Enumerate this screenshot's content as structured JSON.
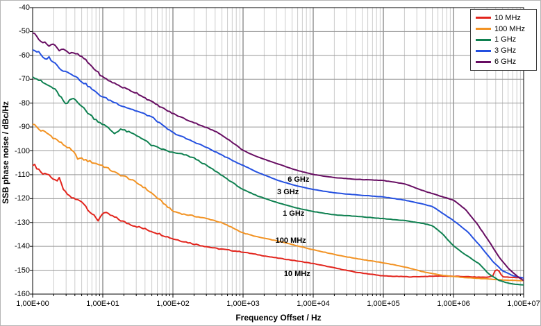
{
  "chart_data": {
    "type": "line",
    "title": "",
    "xlabel": "Frequency Offset / Hz",
    "ylabel": "SSB phase noise / dBc/Hz",
    "x_scale": "log10",
    "x_range_log10": [
      0,
      7
    ],
    "ylim": [
      -160,
      -40
    ],
    "y_tick_step": 10,
    "grid": "major-and-log-minor",
    "x_ticklabels": [
      "1,00E+00",
      "1,00E+01",
      "1,00E+02",
      "1,00E+03",
      "1,00E+04",
      "1,00E+05",
      "1,00E+06",
      "1,00E+07"
    ],
    "y_ticklabels": [
      "-40",
      "-50",
      "-60",
      "-70",
      "-80",
      "-90",
      "-100",
      "-110",
      "-120",
      "-130",
      "-140",
      "-150",
      "-160"
    ],
    "legend": {
      "position": "top-right"
    },
    "series": [
      {
        "name": "10 MHz",
        "color": "#e2241c",
        "noise_db": 0.7,
        "points_log10f_db": [
          [
            0,
            -105.5
          ],
          [
            0.08,
            -107.5
          ],
          [
            0.15,
            -109.8
          ],
          [
            0.22,
            -109.2
          ],
          [
            0.3,
            -112.8
          ],
          [
            0.38,
            -111.8
          ],
          [
            0.45,
            -117
          ],
          [
            0.52,
            -118.8
          ],
          [
            0.6,
            -120.3
          ],
          [
            0.7,
            -121
          ],
          [
            0.8,
            -124.8
          ],
          [
            0.88,
            -127.5
          ],
          [
            0.93,
            -129.3
          ],
          [
            1.0,
            -125.8
          ],
          [
            1.1,
            -126.8
          ],
          [
            1.3,
            -129.8
          ],
          [
            1.5,
            -131.8
          ],
          [
            1.75,
            -134.2
          ],
          [
            2.0,
            -136.8
          ],
          [
            2.3,
            -139
          ],
          [
            2.6,
            -140.8
          ],
          [
            3.0,
            -142.4
          ],
          [
            3.4,
            -144.5
          ],
          [
            3.7,
            -145.8
          ],
          [
            4.0,
            -147.2
          ],
          [
            4.3,
            -149
          ],
          [
            4.6,
            -150.8
          ],
          [
            5.0,
            -152.4
          ],
          [
            5.4,
            -152.8
          ],
          [
            5.8,
            -152.4
          ],
          [
            6.1,
            -152.6
          ],
          [
            6.35,
            -152.9
          ],
          [
            6.5,
            -152.9
          ],
          [
            6.57,
            -152.2
          ],
          [
            6.6,
            -149.4
          ],
          [
            6.65,
            -150.5
          ],
          [
            6.7,
            -152.8
          ],
          [
            6.85,
            -153
          ],
          [
            7.0,
            -153.2
          ]
        ]
      },
      {
        "name": "100 MHz",
        "color": "#f29222",
        "noise_db": 0.6,
        "points_log10f_db": [
          [
            0,
            -88.5
          ],
          [
            0.1,
            -91.2
          ],
          [
            0.2,
            -92.5
          ],
          [
            0.3,
            -94.5
          ],
          [
            0.42,
            -97
          ],
          [
            0.5,
            -98.5
          ],
          [
            0.58,
            -100.5
          ],
          [
            0.64,
            -103
          ],
          [
            0.72,
            -103.5
          ],
          [
            0.85,
            -104.8
          ],
          [
            1.0,
            -106.2
          ],
          [
            1.2,
            -109.5
          ],
          [
            1.35,
            -111.2
          ],
          [
            1.55,
            -114.5
          ],
          [
            1.7,
            -117.8
          ],
          [
            1.85,
            -121.5
          ],
          [
            2.0,
            -125.3
          ],
          [
            2.15,
            -126.5
          ],
          [
            2.35,
            -127.6
          ],
          [
            2.55,
            -128.8
          ],
          [
            2.7,
            -130.2
          ],
          [
            2.85,
            -132.2
          ],
          [
            3.0,
            -134.4
          ],
          [
            3.2,
            -136
          ],
          [
            3.5,
            -137.8
          ],
          [
            3.75,
            -139.6
          ],
          [
            4.0,
            -141.4
          ],
          [
            4.4,
            -144
          ],
          [
            4.76,
            -145.8
          ],
          [
            5.0,
            -146.9
          ],
          [
            5.3,
            -148.6
          ],
          [
            5.6,
            -150.9
          ],
          [
            5.85,
            -152.2
          ],
          [
            6.1,
            -152.9
          ],
          [
            6.4,
            -153.5
          ],
          [
            6.7,
            -154.1
          ],
          [
            7.0,
            -154.4
          ]
        ]
      },
      {
        "name": "1 GHz",
        "color": "#0e8050",
        "noise_db": 0.6,
        "points_log10f_db": [
          [
            0,
            -68.5
          ],
          [
            0.12,
            -71
          ],
          [
            0.2,
            -72.3
          ],
          [
            0.3,
            -73.8
          ],
          [
            0.4,
            -77.3
          ],
          [
            0.47,
            -80.8
          ],
          [
            0.57,
            -77.8
          ],
          [
            0.65,
            -79.5
          ],
          [
            0.75,
            -83
          ],
          [
            0.88,
            -86.5
          ],
          [
            1.0,
            -88.8
          ],
          [
            1.1,
            -91
          ],
          [
            1.17,
            -92.8
          ],
          [
            1.25,
            -90.8
          ],
          [
            1.4,
            -92.5
          ],
          [
            1.55,
            -94.5
          ],
          [
            1.7,
            -97.8
          ],
          [
            1.85,
            -99.3
          ],
          [
            2.0,
            -100.8
          ],
          [
            2.15,
            -101.5
          ],
          [
            2.3,
            -103
          ],
          [
            2.5,
            -106.5
          ],
          [
            2.7,
            -110.3
          ],
          [
            2.85,
            -113.3
          ],
          [
            3.0,
            -116.3
          ],
          [
            3.2,
            -118.8
          ],
          [
            3.5,
            -121.8
          ],
          [
            3.75,
            -123.8
          ],
          [
            4.0,
            -125.4
          ],
          [
            4.3,
            -126.8
          ],
          [
            4.6,
            -127.4
          ],
          [
            5.0,
            -128.4
          ],
          [
            5.3,
            -129.2
          ],
          [
            5.55,
            -130.3
          ],
          [
            5.7,
            -131.3
          ],
          [
            5.85,
            -135
          ],
          [
            6.0,
            -139.8
          ],
          [
            6.17,
            -143.5
          ],
          [
            6.37,
            -147.4
          ],
          [
            6.5,
            -151.5
          ],
          [
            6.65,
            -154.3
          ],
          [
            6.8,
            -155.6
          ],
          [
            7.0,
            -156.2
          ]
        ]
      },
      {
        "name": "3 GHz",
        "color": "#2450e0",
        "noise_db": 0.5,
        "points_log10f_db": [
          [
            0,
            -57.5
          ],
          [
            0.1,
            -59
          ],
          [
            0.16,
            -61.8
          ],
          [
            0.23,
            -60.8
          ],
          [
            0.35,
            -64.3
          ],
          [
            0.43,
            -66.3
          ],
          [
            0.55,
            -67.5
          ],
          [
            0.68,
            -70.5
          ],
          [
            0.8,
            -73
          ],
          [
            0.9,
            -75.5
          ],
          [
            1.0,
            -77.4
          ],
          [
            1.15,
            -79.5
          ],
          [
            1.3,
            -81.4
          ],
          [
            1.5,
            -83.5
          ],
          [
            1.7,
            -85.8
          ],
          [
            1.85,
            -89.3
          ],
          [
            2.0,
            -92.4
          ],
          [
            2.2,
            -95
          ],
          [
            2.4,
            -97.5
          ],
          [
            2.6,
            -100.3
          ],
          [
            2.8,
            -103.3
          ],
          [
            3.0,
            -106.1
          ],
          [
            3.2,
            -108.9
          ],
          [
            3.5,
            -112.4
          ],
          [
            3.75,
            -114.6
          ],
          [
            4.0,
            -116.2
          ],
          [
            4.3,
            -117.6
          ],
          [
            4.6,
            -118.4
          ],
          [
            5.0,
            -119.3
          ],
          [
            5.3,
            -120.6
          ],
          [
            5.55,
            -122.2
          ],
          [
            5.7,
            -123.3
          ],
          [
            6.0,
            -129.2
          ],
          [
            6.2,
            -133.8
          ],
          [
            6.4,
            -140.5
          ],
          [
            6.55,
            -146
          ],
          [
            6.7,
            -150.3
          ],
          [
            6.85,
            -152.3
          ],
          [
            7.0,
            -153.3
          ]
        ]
      },
      {
        "name": "6 GHz",
        "color": "#670d62",
        "noise_db": 0.5,
        "points_log10f_db": [
          [
            0,
            -50.3
          ],
          [
            0.13,
            -54.2
          ],
          [
            0.23,
            -55.7
          ],
          [
            0.3,
            -55.3
          ],
          [
            0.37,
            -57.7
          ],
          [
            0.45,
            -57.2
          ],
          [
            0.52,
            -59.1
          ],
          [
            0.62,
            -59.3
          ],
          [
            0.72,
            -61
          ],
          [
            0.85,
            -64.8
          ],
          [
            1.0,
            -69.2
          ],
          [
            1.15,
            -71.5
          ],
          [
            1.3,
            -73.6
          ],
          [
            1.5,
            -76
          ],
          [
            1.7,
            -79.5
          ],
          [
            1.85,
            -82
          ],
          [
            2.0,
            -84.4
          ],
          [
            2.2,
            -87
          ],
          [
            2.4,
            -89.3
          ],
          [
            2.6,
            -91.8
          ],
          [
            2.7,
            -93.4
          ],
          [
            2.85,
            -96.5
          ],
          [
            3.0,
            -99.8
          ],
          [
            3.2,
            -102.5
          ],
          [
            3.5,
            -105.5
          ],
          [
            3.75,
            -108
          ],
          [
            4.0,
            -109.9
          ],
          [
            4.3,
            -111.2
          ],
          [
            4.6,
            -111.9
          ],
          [
            5.0,
            -112.4
          ],
          [
            5.3,
            -113.8
          ],
          [
            5.6,
            -117
          ],
          [
            5.85,
            -119.3
          ],
          [
            6.0,
            -120.6
          ],
          [
            6.17,
            -124.5
          ],
          [
            6.33,
            -130.3
          ],
          [
            6.5,
            -137.6
          ],
          [
            6.66,
            -145
          ],
          [
            6.8,
            -149.8
          ],
          [
            6.9,
            -152.3
          ],
          [
            7.0,
            -154.4
          ]
        ]
      }
    ],
    "annotations": [
      {
        "label": "6 GHz",
        "log10f": 3.79,
        "db": -112.1
      },
      {
        "label": "3 GHz",
        "log10f": 3.64,
        "db": -117.3
      },
      {
        "label": "1 GHz",
        "log10f": 3.72,
        "db": -126.2
      },
      {
        "label": "100 MHz",
        "log10f": 3.68,
        "db": -137.5
      },
      {
        "label": "10 MHz",
        "log10f": 3.77,
        "db": -151.7
      }
    ]
  },
  "colors": {
    "grid_minor": "#cccccc",
    "grid_major_v": "#5f5f5f",
    "grid_major_h": "#969696",
    "axis": "#000000",
    "background": "#ffffff"
  }
}
